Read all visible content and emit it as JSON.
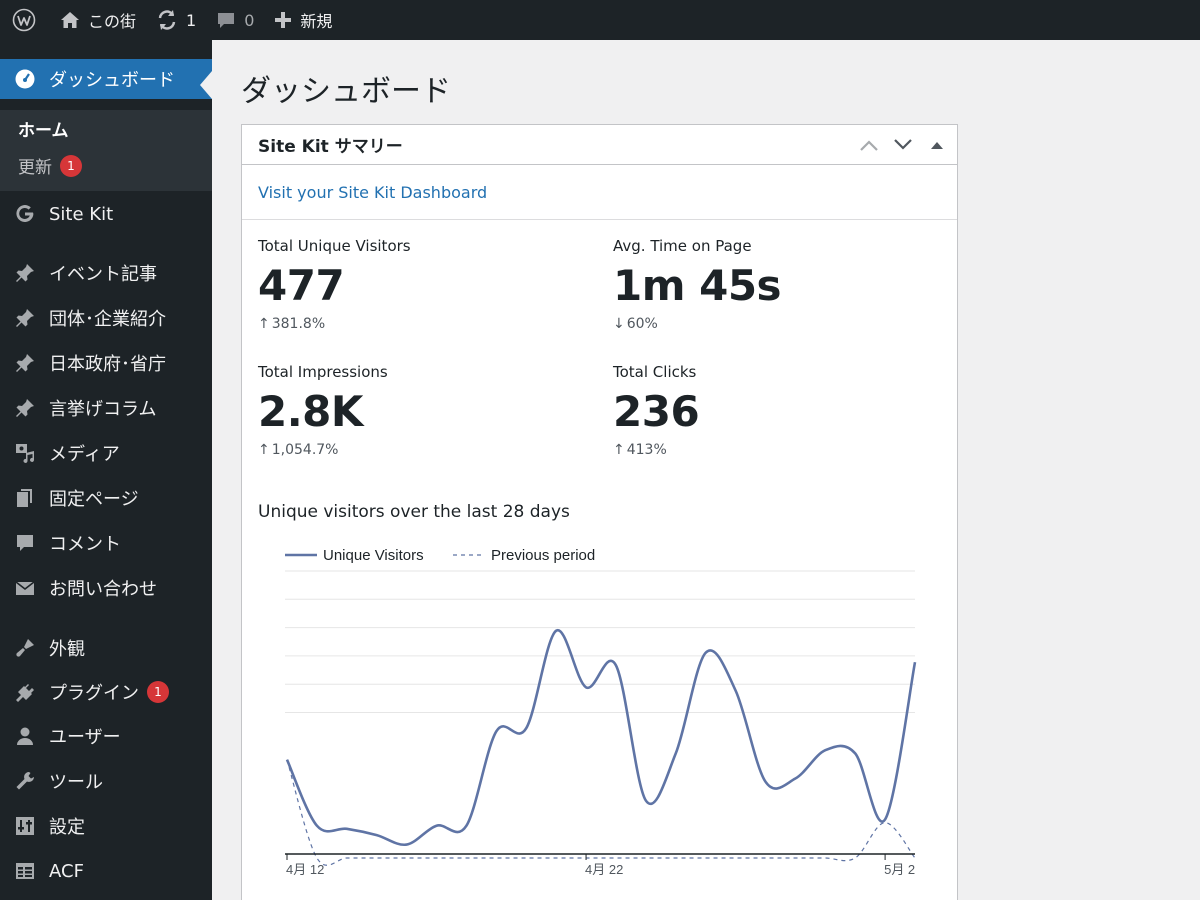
{
  "adminbar": {
    "site_name": "この街",
    "updates_count": "1",
    "comments_count": "0",
    "new_label": "新規"
  },
  "sidebar": {
    "dashboard_label": "ダッシュボード",
    "submenu": {
      "home": "ホーム",
      "updates": "更新",
      "updates_badge": "1"
    },
    "items": [
      {
        "label": "Site Kit",
        "icon": "google-g-icon"
      },
      {
        "label": "イベント記事",
        "icon": "pin-icon"
      },
      {
        "label": "団体･企業紹介",
        "icon": "pin-icon"
      },
      {
        "label": "日本政府･省庁",
        "icon": "pin-icon"
      },
      {
        "label": "言挙げコラム",
        "icon": "pin-icon"
      },
      {
        "label": "メディア",
        "icon": "media-icon"
      },
      {
        "label": "固定ページ",
        "icon": "pages-icon"
      },
      {
        "label": "コメント",
        "icon": "comment-icon"
      },
      {
        "label": "お問い合わせ",
        "icon": "mail-icon"
      },
      {
        "label": "外観",
        "icon": "brush-icon"
      },
      {
        "label": "プラグイン",
        "icon": "plugin-icon",
        "badge": "1"
      },
      {
        "label": "ユーザー",
        "icon": "user-icon"
      },
      {
        "label": "ツール",
        "icon": "wrench-icon"
      },
      {
        "label": "設定",
        "icon": "settings-icon"
      },
      {
        "label": "ACF",
        "icon": "table-icon"
      }
    ]
  },
  "page": {
    "title": "ダッシュボード"
  },
  "widget": {
    "title": "Site Kit サマリー",
    "dashboard_link": "Visit your Site Kit Dashboard",
    "metrics": [
      {
        "label": "Total Unique Visitors",
        "value": "477",
        "change": "381.8%",
        "direction": "up"
      },
      {
        "label": "Avg. Time on Page",
        "value": "1m 45s",
        "change": "60%",
        "direction": "down"
      },
      {
        "label": "Total Impressions",
        "value": "2.8K",
        "change": "1,054.7%",
        "direction": "up"
      },
      {
        "label": "Total Clicks",
        "value": "236",
        "change": "413%",
        "direction": "up"
      }
    ],
    "chart_title": "Unique visitors over the last 28 days"
  },
  "colors": {
    "sidebar_bg": "#1d2327",
    "accent": "#2271b1",
    "series_line": "#5f74a5",
    "badge": "#d63638"
  },
  "chart_data": {
    "type": "line",
    "x_tick_labels": [
      "4月 12",
      "4月 22",
      "5月 2"
    ],
    "x_tick_indices": [
      0,
      10,
      20
    ],
    "series": [
      {
        "name": "Unique Visitors",
        "style": "solid",
        "values": [
          30,
          9,
          8,
          6,
          3,
          9,
          9,
          39,
          40,
          71,
          53,
          60,
          17,
          32,
          64,
          52,
          23,
          24,
          33,
          32,
          11,
          61
        ]
      },
      {
        "name": "Previous period",
        "style": "dashed",
        "values": [
          30,
          -8,
          -8,
          -8,
          -8,
          -8,
          -8,
          -8,
          -8,
          -8,
          -8,
          -8,
          -8,
          -8,
          -8,
          -8,
          -8,
          -8,
          -8,
          -8,
          10,
          -8
        ]
      }
    ],
    "y_range": [
      0,
      90
    ],
    "grid": true,
    "legend": "top-left"
  }
}
